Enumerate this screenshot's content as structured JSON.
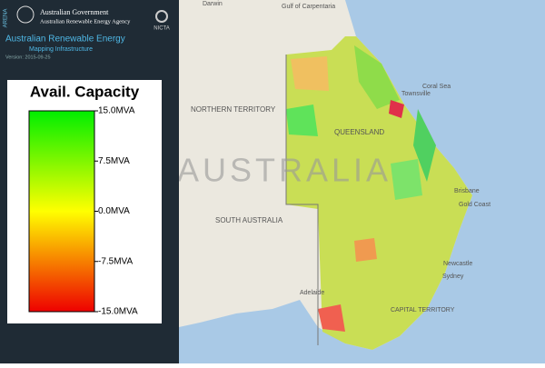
{
  "header": {
    "logo_side": "ARENA",
    "gov_line1": "Australian Government",
    "gov_line2": "Australian Renewable Energy Agency",
    "partner": "NICTA",
    "title": "Australian Renewable Energy",
    "subtitle": "Mapping Infrastructure",
    "version": "Version: 2015-09-25"
  },
  "legend": {
    "title": "Avail. Capacity",
    "labels": [
      "15.0MVA",
      "7.5MVA",
      "0.0MVA",
      "-7.5MVA",
      "-15.0MVA"
    ]
  },
  "map_labels": {
    "darwin": "Darwin",
    "gulf": "Gulf of Carpentaria",
    "coral": "Coral Sea",
    "townsville": "Townsville",
    "nt": "NORTHERN TERRITORY",
    "qld": "QUEENSLAND",
    "country": "AUSTRALIA",
    "sa": "SOUTH AUSTRALIA",
    "brisbane": "Brisbane",
    "gold": "Gold Coast",
    "newcastle": "Newcastle",
    "sydney": "Sydney",
    "adelaide": "Adelaide",
    "act": "CAPITAL TERRITORY"
  }
}
